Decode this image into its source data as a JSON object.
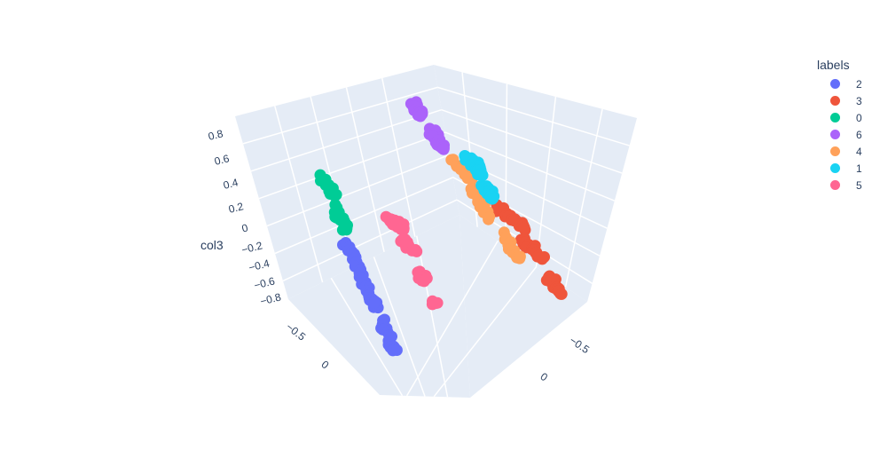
{
  "chart_data": {
    "type": "scatter",
    "mode": "3d",
    "axes": {
      "x": {
        "title": "",
        "ticks": [
          "−0.5",
          "0"
        ]
      },
      "y": {
        "title": "",
        "ticks": [
          "−0.5",
          "0"
        ]
      },
      "z": {
        "title": "col3",
        "ticks": [
          "0.8",
          "0.6",
          "0.4",
          "0.2",
          "0",
          "−0.2",
          "−0.4",
          "−0.6",
          "−0.8"
        ]
      }
    },
    "legend": {
      "title": "labels",
      "placement": "top-right",
      "entries": [
        {
          "label": "2",
          "color": "#636efa"
        },
        {
          "label": "3",
          "color": "#ef553b"
        },
        {
          "label": "0",
          "color": "#00cc96"
        },
        {
          "label": "6",
          "color": "#ab63fa"
        },
        {
          "label": "4",
          "color": "#ffa15a"
        },
        {
          "label": "1",
          "color": "#19d3f3"
        },
        {
          "label": "5",
          "color": "#ff6692"
        }
      ]
    },
    "series": [
      {
        "name": "2",
        "color": "#636efa"
      },
      {
        "name": "3",
        "color": "#ef553b"
      },
      {
        "name": "0",
        "color": "#00cc96"
      },
      {
        "name": "6",
        "color": "#ab63fa"
      },
      {
        "name": "4",
        "color": "#ffa15a"
      },
      {
        "name": "1",
        "color": "#19d3f3"
      },
      {
        "name": "5",
        "color": "#ff6692"
      }
    ],
    "grid": true,
    "scene_background": "#e5ecf6",
    "grid_color": "#ffffff"
  }
}
